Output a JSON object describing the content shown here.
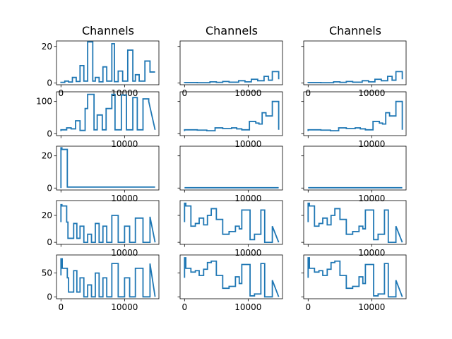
{
  "figure": {
    "column_titles": [
      "Channels",
      "Channels",
      "Channels"
    ],
    "series_color": "#1f77b4"
  },
  "chart_data": [
    {
      "row": 0,
      "col": 0,
      "type": "line",
      "title": "Channels",
      "xlim": [
        -700,
        15400
      ],
      "ylim": [
        -1,
        23
      ],
      "yticks": [
        0,
        20
      ],
      "xticks": [
        0,
        10000
      ],
      "yticklabels": [
        "0",
        "20"
      ],
      "xticklabels": [
        "0",
        "10000"
      ],
      "x": [
        0,
        0,
        600,
        600,
        1200,
        1200,
        1800,
        1800,
        2400,
        2400,
        3000,
        3000,
        3600,
        3600,
        4200,
        4200,
        5000,
        5000,
        5400,
        5400,
        6000,
        6000,
        6600,
        6600,
        7200,
        7200,
        8000,
        8000,
        8400,
        8400,
        9000,
        9000,
        9700,
        9700,
        10500,
        10500,
        11300,
        11300,
        11700,
        11700,
        12300,
        12300,
        13200,
        13200,
        14000,
        14000,
        14800
      ],
      "y": [
        0,
        0.3,
        0.3,
        1,
        1,
        0.5,
        0.5,
        3,
        3,
        0.8,
        0.8,
        9.5,
        9.5,
        1,
        1,
        22.5,
        22.5,
        1,
        1,
        3,
        3,
        0.6,
        0.6,
        8.8,
        8.8,
        1,
        1,
        21.5,
        21.5,
        0.7,
        0.7,
        6.5,
        6.5,
        1,
        1,
        18,
        18,
        1,
        1,
        4.5,
        4.5,
        1,
        1,
        12,
        12,
        6,
        6
      ]
    },
    {
      "row": 0,
      "col": 1,
      "type": "line",
      "title": "Channels",
      "xlim": [
        -700,
        15400
      ],
      "ylim": [
        -1,
        23
      ],
      "yticks": [
        0,
        20
      ],
      "xticks": [
        0,
        10000
      ],
      "yticklabels": [
        "",
        ""
      ],
      "xticklabels": [
        "0",
        "10000"
      ],
      "x": [
        0,
        0,
        2000,
        2000,
        4000,
        4000,
        5000,
        5000,
        6000,
        6000,
        7000,
        7000,
        8500,
        8500,
        9500,
        9500,
        10500,
        10500,
        11500,
        11500,
        12500,
        12500,
        13200,
        13200,
        13800,
        13800,
        14800,
        14800
      ],
      "y": [
        0,
        0.2,
        0.2,
        0.1,
        0.1,
        0.6,
        0.6,
        0.3,
        0.3,
        0.8,
        0.8,
        0.4,
        0.4,
        1.2,
        1.2,
        0.6,
        0.6,
        2.0,
        2.0,
        1.2,
        1.2,
        3.6,
        3.6,
        1.5,
        1.5,
        6.2,
        6.2,
        2.0
      ]
    },
    {
      "row": 0,
      "col": 2,
      "type": "line",
      "title": "Channels",
      "xlim": [
        -700,
        15400
      ],
      "ylim": [
        -1,
        23
      ],
      "yticks": [
        0,
        20
      ],
      "xticks": [
        0,
        10000
      ],
      "yticklabels": [
        "",
        ""
      ],
      "xticklabels": [
        "0",
        "10000"
      ],
      "x": [
        0,
        0,
        2000,
        2000,
        4000,
        4000,
        5000,
        5000,
        6000,
        6000,
        7000,
        7000,
        8500,
        8500,
        9500,
        9500,
        10500,
        10500,
        11500,
        11500,
        12500,
        12500,
        13200,
        13200,
        13800,
        13800,
        14800,
        14800
      ],
      "y": [
        0,
        0.2,
        0.2,
        0.1,
        0.1,
        0.6,
        0.6,
        0.3,
        0.3,
        0.8,
        0.8,
        0.4,
        0.4,
        1.2,
        1.2,
        0.6,
        0.6,
        2.0,
        2.0,
        1.2,
        1.2,
        3.6,
        3.6,
        1.5,
        1.5,
        6.2,
        6.2,
        2.0
      ]
    },
    {
      "row": 1,
      "col": 0,
      "type": "line",
      "title": "",
      "xlim": [
        -700,
        15400
      ],
      "ylim": [
        -6,
        130
      ],
      "yticks": [
        0,
        100
      ],
      "xticks": [
        0,
        10000
      ],
      "yticklabels": [
        "0",
        "100"
      ],
      "xticklabels": [
        "",
        "10000"
      ],
      "x": [
        0,
        0,
        900,
        900,
        1600,
        1600,
        2300,
        2300,
        3000,
        3000,
        3800,
        3800,
        4200,
        4200,
        5200,
        5200,
        5700,
        5700,
        6500,
        6500,
        7100,
        7100,
        8000,
        8000,
        8500,
        8500,
        9500,
        9500,
        10300,
        10300,
        11300,
        11300,
        12000,
        12000,
        12900,
        12900,
        13800,
        13800,
        14800
      ],
      "y": [
        8,
        12,
        12,
        18,
        18,
        15,
        15,
        40,
        40,
        10,
        10,
        78,
        78,
        122,
        122,
        12,
        12,
        58,
        58,
        12,
        12,
        78,
        78,
        122,
        122,
        12,
        12,
        120,
        120,
        12,
        12,
        112,
        112,
        12,
        12,
        108,
        108,
        100,
        12
      ]
    },
    {
      "row": 1,
      "col": 1,
      "type": "line",
      "title": "",
      "xlim": [
        -700,
        15400
      ],
      "ylim": [
        -6,
        130
      ],
      "yticks": [
        0,
        100
      ],
      "xticks": [
        0,
        10000
      ],
      "yticklabels": [
        "",
        ""
      ],
      "xticklabels": [
        "",
        "10000"
      ],
      "x": [
        0,
        0,
        2000,
        2000,
        3500,
        3500,
        4800,
        4800,
        6000,
        6000,
        7400,
        7400,
        8200,
        8200,
        9000,
        9000,
        10200,
        10200,
        11200,
        11200,
        11700,
        11700,
        12200,
        12200,
        12800,
        12800,
        13800,
        13800,
        14800,
        14800
      ],
      "y": [
        8,
        12,
        12,
        11,
        11,
        9,
        9,
        18,
        18,
        16,
        16,
        18,
        18,
        15,
        15,
        12,
        12,
        38,
        38,
        33,
        33,
        30,
        30,
        65,
        65,
        55,
        55,
        100,
        100,
        12
      ]
    },
    {
      "row": 1,
      "col": 2,
      "type": "line",
      "title": "",
      "xlim": [
        -700,
        15400
      ],
      "ylim": [
        -6,
        130
      ],
      "yticks": [
        0,
        100
      ],
      "xticks": [
        0,
        10000
      ],
      "yticklabels": [
        "",
        ""
      ],
      "xticklabels": [
        "",
        "10000"
      ],
      "x": [
        0,
        0,
        2000,
        2000,
        3500,
        3500,
        4800,
        4800,
        6000,
        6000,
        7400,
        7400,
        8200,
        8200,
        9000,
        9000,
        10200,
        10200,
        11200,
        11200,
        11700,
        11700,
        12200,
        12200,
        12800,
        12800,
        13800,
        13800,
        14800,
        14800
      ],
      "y": [
        8,
        12,
        12,
        11,
        11,
        9,
        9,
        18,
        18,
        16,
        16,
        18,
        18,
        15,
        15,
        12,
        12,
        38,
        38,
        33,
        33,
        30,
        30,
        65,
        65,
        55,
        55,
        100,
        100,
        12
      ]
    },
    {
      "row": 2,
      "col": 0,
      "type": "line",
      "title": "",
      "xlim": [
        -700,
        15400
      ],
      "ylim": [
        -1.2,
        26
      ],
      "yticks": [
        0,
        20
      ],
      "xticks": [
        0,
        10000
      ],
      "yticklabels": [
        "0",
        "20"
      ],
      "xticklabels": [
        "",
        "10000"
      ],
      "x": [
        0,
        0,
        150,
        150,
        1000,
        1000,
        14800
      ],
      "y": [
        0,
        25,
        25,
        24,
        24,
        0.6,
        0.6
      ]
    },
    {
      "row": 2,
      "col": 1,
      "type": "line",
      "title": "",
      "xlim": [
        -700,
        15400
      ],
      "ylim": [
        -1.2,
        26
      ],
      "yticks": [
        0,
        20
      ],
      "xticks": [
        0,
        10000
      ],
      "yticklabels": [
        "",
        ""
      ],
      "xticklabels": [
        "",
        "10000"
      ],
      "x": [
        0,
        14800
      ],
      "y": [
        0.2,
        0.2
      ]
    },
    {
      "row": 2,
      "col": 2,
      "type": "line",
      "title": "",
      "xlim": [
        -700,
        15400
      ],
      "ylim": [
        -1.2,
        26
      ],
      "yticks": [
        0,
        20
      ],
      "xticks": [
        0,
        10000
      ],
      "yticklabels": [
        "",
        ""
      ],
      "xticklabels": [
        "",
        "10000"
      ],
      "x": [
        0,
        14800
      ],
      "y": [
        0.2,
        0.2
      ]
    },
    {
      "row": 3,
      "col": 0,
      "type": "line",
      "title": "",
      "xlim": [
        -700,
        15400
      ],
      "ylim": [
        -1.5,
        31
      ],
      "yticks": [
        0,
        20
      ],
      "xticks": [
        0,
        10000
      ],
      "yticklabels": [
        "0",
        "20"
      ],
      "xticklabels": [
        "",
        "10000"
      ],
      "x": [
        0,
        0,
        150,
        150,
        900,
        900,
        1100,
        1100,
        2000,
        2000,
        2500,
        2500,
        3000,
        3000,
        3600,
        3600,
        4200,
        4200,
        4800,
        4800,
        5400,
        5400,
        6000,
        6000,
        6600,
        6600,
        7200,
        7200,
        8000,
        8000,
        9000,
        9000,
        10000,
        10000,
        10800,
        10800,
        11700,
        11700,
        12900,
        12900,
        14000,
        14000,
        14800
      ],
      "y": [
        15,
        28,
        28,
        27,
        27,
        15,
        15,
        3,
        3,
        14,
        14,
        3,
        3,
        12,
        12,
        0,
        0,
        6,
        6,
        0,
        0,
        14,
        14,
        0,
        0,
        12,
        12,
        0,
        0,
        20,
        20,
        0,
        0,
        12,
        12,
        0,
        0,
        18,
        18,
        0,
        0,
        19,
        0
      ]
    },
    {
      "row": 3,
      "col": 1,
      "type": "line",
      "title": "",
      "xlim": [
        -700,
        15400
      ],
      "ylim": [
        -1.5,
        31
      ],
      "yticks": [
        0,
        20
      ],
      "xticks": [
        0,
        10000
      ],
      "yticklabels": [
        "",
        ""
      ],
      "xticklabels": [
        "",
        "10000"
      ],
      "x": [
        0,
        0,
        200,
        200,
        1000,
        1000,
        1700,
        1700,
        2300,
        2300,
        3000,
        3000,
        3600,
        3600,
        4200,
        4200,
        5000,
        5000,
        6000,
        6000,
        7000,
        7000,
        8000,
        8000,
        8600,
        8600,
        9000,
        9000,
        10300,
        10300,
        11000,
        11000,
        12000,
        12000,
        12600,
        12600,
        13800,
        13800,
        14800
      ],
      "y": [
        15,
        29,
        29,
        27,
        27,
        12,
        12,
        14,
        14,
        18,
        18,
        13,
        13,
        20,
        20,
        25,
        25,
        17,
        17,
        6,
        6,
        8,
        8,
        12,
        12,
        10,
        10,
        24,
        24,
        2,
        2,
        6,
        6,
        24,
        24,
        0,
        0,
        12,
        0
      ]
    },
    {
      "row": 3,
      "col": 2,
      "type": "line",
      "title": "",
      "xlim": [
        -700,
        15400
      ],
      "ylim": [
        -1.5,
        31
      ],
      "yticks": [
        0,
        20
      ],
      "xticks": [
        0,
        10000
      ],
      "yticklabels": [
        "",
        ""
      ],
      "xticklabels": [
        "",
        "10000"
      ],
      "x": [
        0,
        0,
        200,
        200,
        1000,
        1000,
        1700,
        1700,
        2300,
        2300,
        3000,
        3000,
        3600,
        3600,
        4200,
        4200,
        5000,
        5000,
        6000,
        6000,
        7000,
        7000,
        8000,
        8000,
        8600,
        8600,
        9000,
        9000,
        10300,
        10300,
        11000,
        11000,
        12000,
        12000,
        12600,
        12600,
        13800,
        13800,
        14800
      ],
      "y": [
        15,
        29,
        29,
        27,
        27,
        12,
        12,
        14,
        14,
        18,
        18,
        13,
        13,
        20,
        20,
        25,
        25,
        17,
        17,
        6,
        6,
        8,
        8,
        12,
        12,
        10,
        10,
        24,
        24,
        2,
        2,
        6,
        6,
        24,
        24,
        0,
        0,
        12,
        0
      ]
    },
    {
      "row": 4,
      "col": 0,
      "type": "line",
      "title": "",
      "xlim": [
        -700,
        15400
      ],
      "ylim": [
        -4,
        88
      ],
      "yticks": [
        0,
        50
      ],
      "xticks": [
        0,
        10000
      ],
      "yticklabels": [
        "0",
        "50"
      ],
      "xticklabels": [
        "0",
        "10000"
      ],
      "x": [
        0,
        0,
        200,
        200,
        1000,
        1000,
        1200,
        1200,
        2000,
        2000,
        2500,
        2500,
        3000,
        3000,
        3600,
        3600,
        4200,
        4200,
        4800,
        4800,
        5400,
        5400,
        6000,
        6000,
        6600,
        6600,
        7200,
        7200,
        8000,
        8000,
        9000,
        9000,
        10000,
        10000,
        10800,
        10800,
        11700,
        11700,
        12900,
        12900,
        14000,
        14000,
        14800
      ],
      "y": [
        45,
        80,
        80,
        60,
        60,
        40,
        40,
        10,
        10,
        55,
        55,
        10,
        10,
        40,
        40,
        0,
        0,
        25,
        25,
        0,
        0,
        50,
        50,
        0,
        0,
        40,
        40,
        0,
        0,
        70,
        70,
        0,
        0,
        40,
        40,
        0,
        0,
        60,
        60,
        0,
        0,
        70,
        0
      ]
    },
    {
      "row": 4,
      "col": 1,
      "type": "line",
      "title": "",
      "xlim": [
        -700,
        15400
      ],
      "ylim": [
        -4,
        88
      ],
      "yticks": [
        0,
        50
      ],
      "xticks": [
        0,
        10000
      ],
      "yticklabels": [
        "",
        ""
      ],
      "xticklabels": [
        "0",
        "10000"
      ],
      "x": [
        0,
        0,
        200,
        200,
        1000,
        1000,
        1700,
        1700,
        2300,
        2300,
        3000,
        3000,
        3600,
        3600,
        4200,
        4200,
        5000,
        5000,
        6000,
        6000,
        7000,
        7000,
        8000,
        8000,
        8600,
        8600,
        9000,
        9000,
        10300,
        10300,
        11000,
        11000,
        12000,
        12000,
        12600,
        12600,
        13800,
        13800,
        14800
      ],
      "y": [
        40,
        82,
        82,
        60,
        60,
        52,
        52,
        55,
        55,
        45,
        45,
        58,
        58,
        72,
        72,
        75,
        75,
        45,
        45,
        18,
        18,
        22,
        22,
        42,
        42,
        28,
        28,
        68,
        68,
        2,
        2,
        6,
        6,
        70,
        70,
        0,
        0,
        35,
        0
      ]
    },
    {
      "row": 4,
      "col": 2,
      "type": "line",
      "title": "",
      "xlim": [
        -700,
        15400
      ],
      "ylim": [
        -4,
        88
      ],
      "yticks": [
        0,
        50
      ],
      "xticks": [
        0,
        10000
      ],
      "yticklabels": [
        "",
        ""
      ],
      "xticklabels": [
        "0",
        "10000"
      ],
      "x": [
        0,
        0,
        200,
        200,
        1000,
        1000,
        1700,
        1700,
        2300,
        2300,
        3000,
        3000,
        3600,
        3600,
        4200,
        4200,
        5000,
        5000,
        6000,
        6000,
        7000,
        7000,
        8000,
        8000,
        8600,
        8600,
        9000,
        9000,
        10300,
        10300,
        11000,
        11000,
        12000,
        12000,
        12600,
        12600,
        13800,
        13800,
        14800
      ],
      "y": [
        40,
        82,
        82,
        60,
        60,
        52,
        52,
        55,
        55,
        45,
        45,
        58,
        58,
        72,
        72,
        75,
        75,
        45,
        45,
        18,
        18,
        22,
        22,
        42,
        42,
        28,
        28,
        68,
        68,
        2,
        2,
        6,
        6,
        70,
        70,
        0,
        0,
        35,
        0
      ]
    }
  ]
}
